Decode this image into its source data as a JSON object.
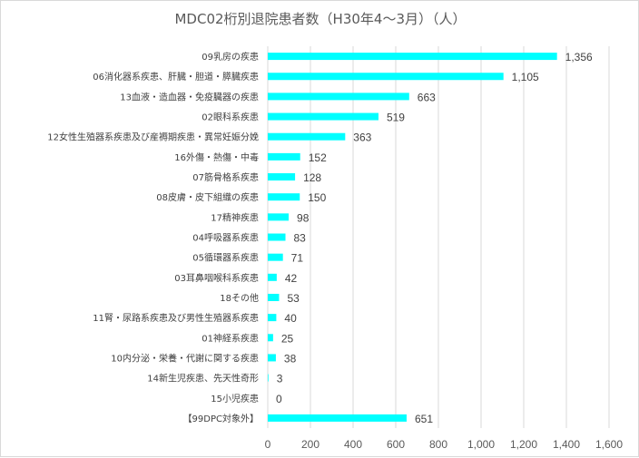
{
  "chart_data": {
    "type": "bar",
    "orientation": "horizontal",
    "title": "MDC02桁別退院患者数（H30年4～3月）（人）",
    "categories": [
      "09乳房の疾患",
      "06消化器系疾患、肝臓・胆道・膵臓疾患",
      "13血液・造血器・免疫臓器の疾患",
      "02眼科系疾患",
      "12女性生殖器系疾患及び産褥期疾患・異常妊娠分娩",
      "16外傷・熱傷・中毒",
      "07筋骨格系疾患",
      "08皮膚・皮下組織の疾患",
      "17精神疾患",
      "04呼吸器系疾患",
      "05循環器系疾患",
      "03耳鼻咽喉科系疾患",
      "18その他",
      "11腎・尿路系疾患及び男性生殖器系疾患",
      "01神経系疾患",
      "10内分泌・栄養・代謝に関する疾患",
      "14新生児疾患、先天性奇形",
      "15小児疾患",
      "【99DPC対象外】"
    ],
    "values": [
      1356,
      1105,
      663,
      519,
      363,
      152,
      128,
      150,
      98,
      83,
      71,
      42,
      53,
      40,
      25,
      38,
      3,
      0,
      651
    ],
    "value_labels": [
      "1,356",
      "1,105",
      "663",
      "519",
      "363",
      "152",
      "128",
      "150",
      "98",
      "83",
      "71",
      "42",
      "53",
      "40",
      "25",
      "38",
      "3",
      "0",
      "651"
    ],
    "xlim": [
      0,
      1600
    ],
    "xticks": [
      0,
      200,
      400,
      600,
      800,
      1000,
      1200,
      1400,
      1600
    ],
    "xtick_labels": [
      "0",
      "200",
      "400",
      "600",
      "800",
      "1,000",
      "1,200",
      "1,400",
      "1,600"
    ],
    "grid": true,
    "legend": "none",
    "bar_color": "#00FFFF",
    "grid_color": "#d9d9d9",
    "text_color": "#404040"
  }
}
